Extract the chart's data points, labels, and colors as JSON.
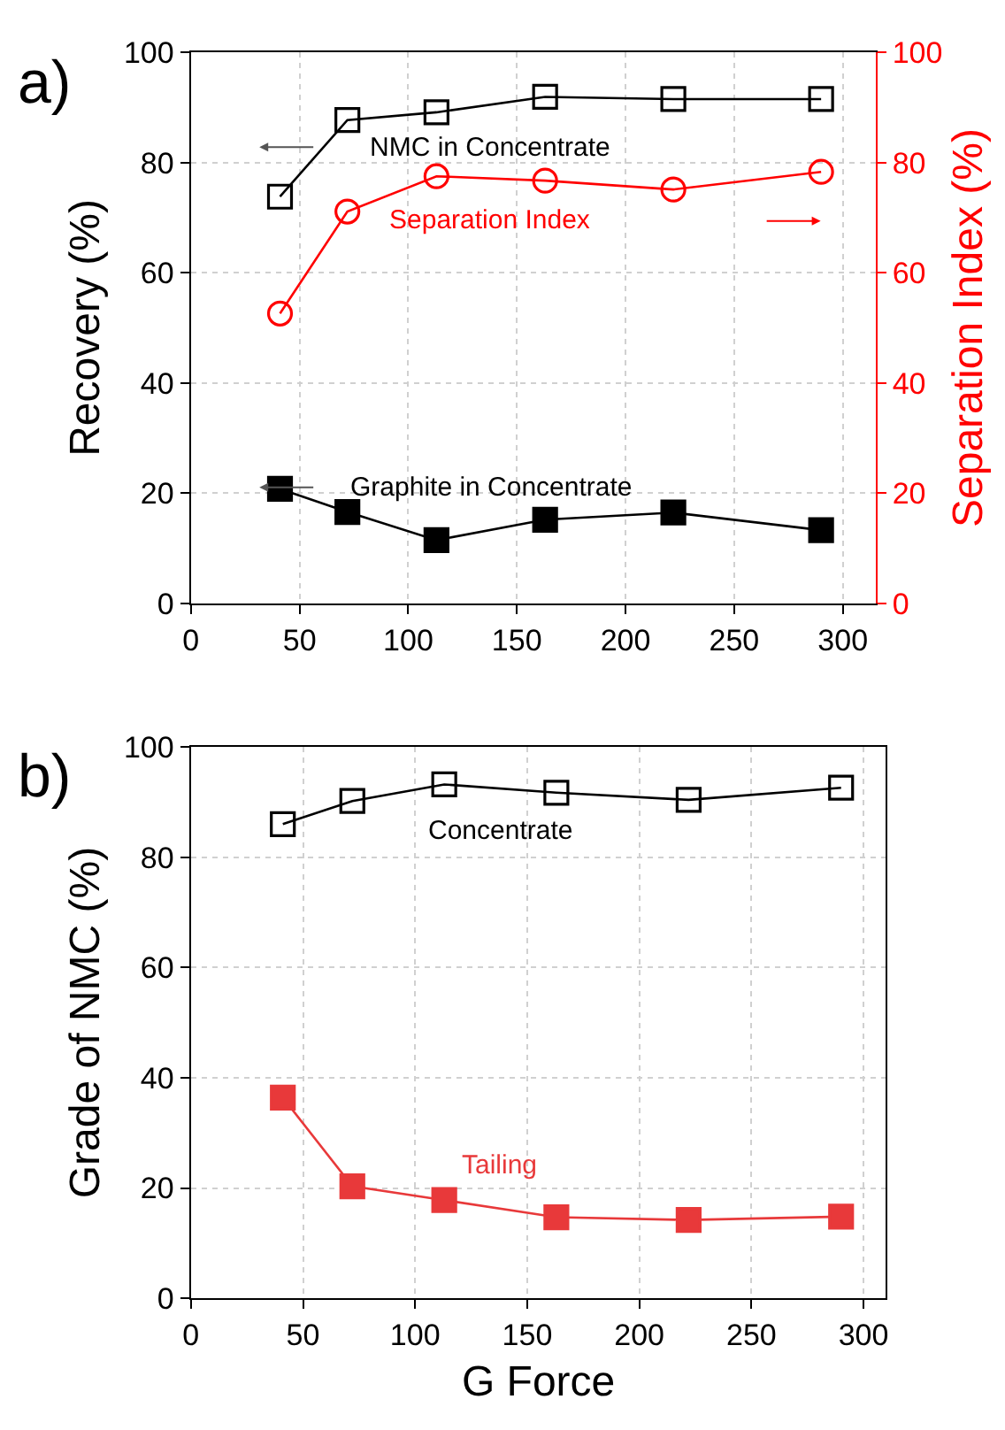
{
  "chart_data": [
    {
      "type": "line",
      "title": "a)",
      "ylabel": "Recovery (%)",
      "y2label": "Separation Index (%)",
      "x": [
        41,
        72,
        113,
        163,
        222,
        290
      ],
      "series": [
        {
          "name": "NMC in Concentrate",
          "color": "#000000",
          "marker": "square-open",
          "values": [
            73.8,
            87.7,
            89.1,
            91.9,
            91.5,
            91.5
          ]
        },
        {
          "name": "Separation Index",
          "color": "#ff0000",
          "marker": "circle-open",
          "axis": "y2",
          "values": [
            52.6,
            71.1,
            77.5,
            76.7,
            75.1,
            78.3
          ]
        },
        {
          "name": "Graphite in Concentrate",
          "color": "#000000",
          "marker": "square",
          "values": [
            20.8,
            16.6,
            11.5,
            15.2,
            16.5,
            13.3
          ]
        }
      ],
      "xlim": [
        0,
        315
      ],
      "xticks": [
        0,
        50,
        100,
        150,
        200,
        250,
        300
      ],
      "ylim": [
        0,
        100
      ],
      "yticks": [
        0,
        20,
        40,
        60,
        80,
        100
      ],
      "y2lim": [
        0,
        100
      ],
      "y2ticks": [
        0,
        20,
        40,
        60,
        80,
        100
      ],
      "grid": true,
      "legend": false,
      "line_style": "solid"
    },
    {
      "type": "line",
      "title": "b)",
      "xlabel": "G Force",
      "ylabel": "Grade of NMC (%)",
      "x": [
        41,
        72,
        113,
        163,
        222,
        290
      ],
      "series": [
        {
          "name": "Concentrate",
          "color": "#000000",
          "marker": "square-open",
          "values": [
            86.0,
            90.2,
            93.2,
            91.7,
            90.4,
            92.6
          ]
        },
        {
          "name": "Tailing",
          "color": "#e8393a",
          "marker": "square",
          "values": [
            36.4,
            20.3,
            17.8,
            14.7,
            14.2,
            14.8
          ]
        }
      ],
      "xlim": [
        0,
        310
      ],
      "xticks": [
        0,
        50,
        100,
        150,
        200,
        250,
        300
      ],
      "ylim": [
        0,
        100
      ],
      "yticks": [
        0,
        20,
        40,
        60,
        80,
        100
      ],
      "grid": true,
      "legend": false,
      "line_style": "solid"
    }
  ]
}
